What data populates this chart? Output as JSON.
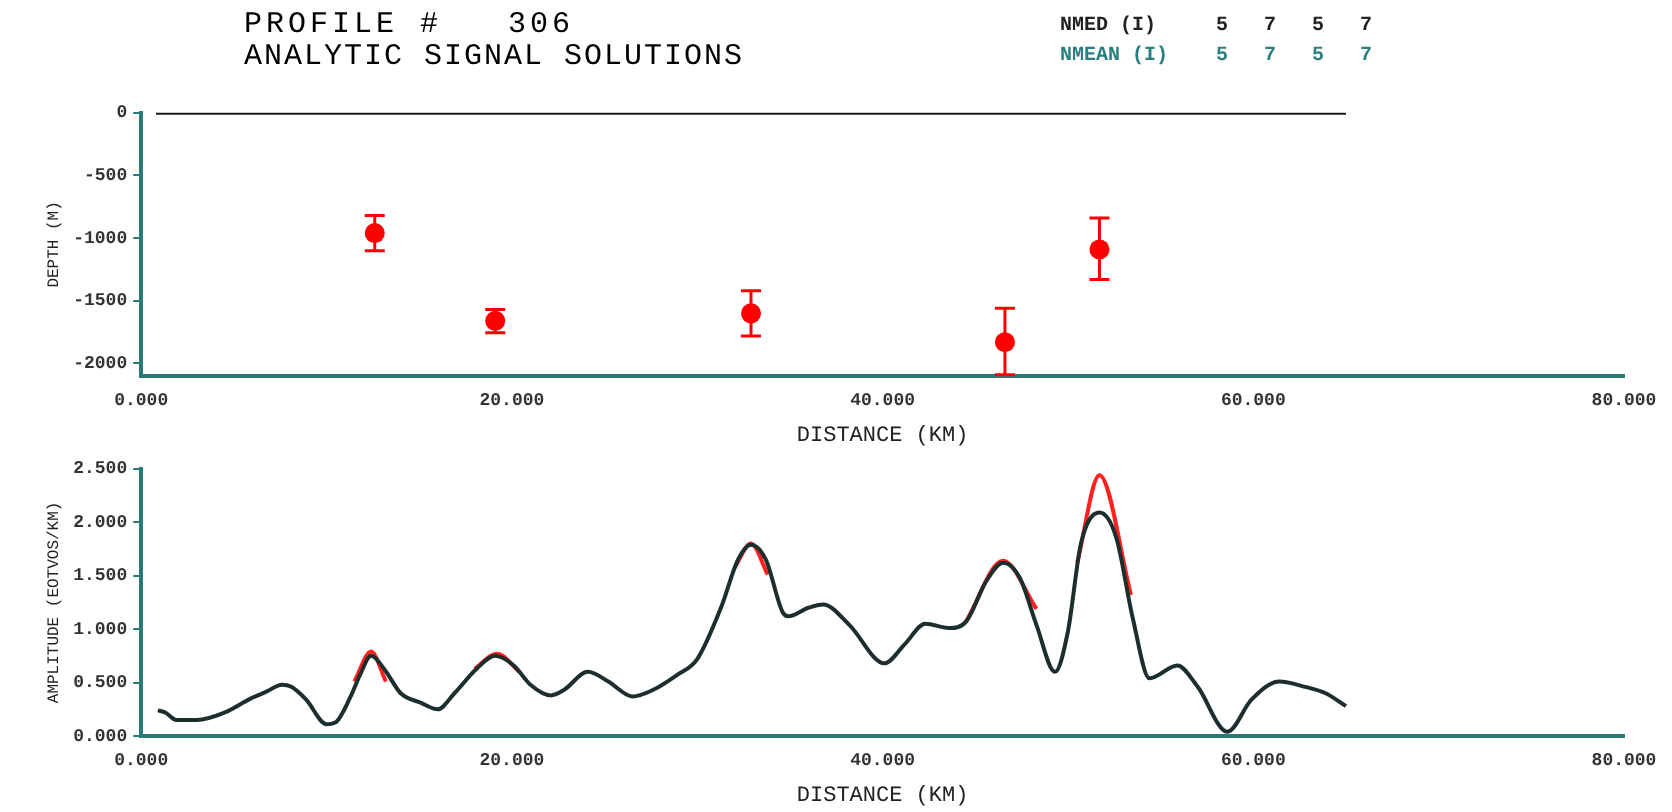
{
  "chart_data": [
    {
      "type": "scatter",
      "title": "PROFILE #   306",
      "subtitle": "ANALYTIC SIGNAL SOLUTIONS",
      "annotations": [
        "NMED (I)     5   7   5   7",
        "NMEAN (I)    5   7   5   7"
      ],
      "xlabel": "DISTANCE (KM)",
      "ylabel": "DEPTH (M)",
      "grid": false,
      "legend": false,
      "xlim": [
        0,
        80
      ],
      "xticks": [
        {
          "value": 0,
          "label": "0.000"
        },
        {
          "value": 20,
          "label": "20.000"
        },
        {
          "value": 40,
          "label": "40.000"
        },
        {
          "value": 60,
          "label": "60.000"
        },
        {
          "value": 80,
          "label": "80.000"
        }
      ],
      "ylim": [
        -2100,
        0
      ],
      "yticks": [
        0,
        -500,
        -1000,
        -1500,
        -2000
      ],
      "series": [
        {
          "marker": "circle",
          "color": "#ff0000",
          "x": [
            12.6,
            19.1,
            32.9,
            46.6,
            51.7
          ],
          "values": [
            -960,
            -1660,
            -1600,
            -1830,
            -1090
          ],
          "errors": [
            [
              -1100,
              -820
            ],
            [
              -1755,
              -1570
            ],
            [
              -1780,
              -1420
            ],
            [
              -2090,
              -1560
            ],
            [
              -1330,
              -840
            ]
          ]
        },
        {
          "type": "line",
          "color": "#1a1a1a",
          "x": [
            0.8,
            65
          ],
          "values": [
            0,
            0
          ]
        }
      ]
    },
    {
      "type": "line",
      "xlabel": "DISTANCE (KM)",
      "ylabel": "AMPLITUDE (EOTVOS/KM)",
      "marker": "none",
      "grid": false,
      "legend": false,
      "xlim": [
        0,
        80
      ],
      "xticks": [
        {
          "value": 0,
          "label": "0.000"
        },
        {
          "value": 20,
          "label": "20.000"
        },
        {
          "value": 40,
          "label": "40.000"
        },
        {
          "value": 60,
          "label": "60.000"
        },
        {
          "value": 80,
          "label": "80.000"
        }
      ],
      "ylim": [
        0,
        2.5
      ],
      "yticks": [
        {
          "value": 0,
          "label": "0.000"
        },
        {
          "value": 0.5,
          "label": "0.500"
        },
        {
          "value": 1,
          "label": "1.000"
        },
        {
          "value": 1.5,
          "label": "1.500"
        },
        {
          "value": 2,
          "label": "2.000"
        },
        {
          "value": 2.5,
          "label": "2.500"
        }
      ],
      "series": [
        {
          "color": "#1c2e2e",
          "x": [
            0.9,
            1.3,
            1.9,
            3.0,
            4.5,
            5.9,
            6.7,
            7.6,
            8.1,
            8.9,
            10.0,
            10.5,
            11.3,
            11.8,
            12.4,
            13.1,
            14.0,
            15.1,
            16.0,
            16.9,
            18.1,
            19.1,
            20.1,
            21.0,
            22.1,
            22.8,
            24.1,
            25.2,
            26.5,
            27.6,
            28.9,
            30.0,
            31.3,
            32.2,
            32.9,
            33.7,
            34.6,
            34.9,
            36.0,
            36.8,
            38.2,
            40.1,
            41.2,
            42.3,
            43.6,
            44.5,
            45.6,
            46.5,
            47.4,
            48.3,
            49.3,
            50.0,
            50.7,
            51.7,
            52.6,
            53.5,
            54.4,
            55.9,
            57.0,
            58.6,
            59.9,
            61.4,
            62.8,
            63.9,
            65.0
          ],
          "values": [
            0.24,
            0.22,
            0.15,
            0.15,
            0.22,
            0.35,
            0.41,
            0.48,
            0.46,
            0.34,
            0.11,
            0.13,
            0.37,
            0.57,
            0.75,
            0.63,
            0.4,
            0.31,
            0.25,
            0.4,
            0.63,
            0.75,
            0.66,
            0.48,
            0.38,
            0.43,
            0.6,
            0.51,
            0.37,
            0.43,
            0.57,
            0.72,
            1.21,
            1.65,
            1.79,
            1.65,
            1.16,
            1.12,
            1.2,
            1.23,
            1.04,
            0.68,
            0.86,
            1.05,
            1.01,
            1.07,
            1.45,
            1.62,
            1.48,
            1.04,
            0.6,
            0.98,
            1.8,
            2.09,
            1.86,
            1.1,
            0.54,
            0.66,
            0.46,
            0.04,
            0.34,
            0.51,
            0.46,
            0.4,
            0.28
          ]
        },
        {
          "color": "#ff2020",
          "x": [
            11.5,
            12.4,
            13.2
          ],
          "values": [
            0.51,
            0.79,
            0.51
          ]
        },
        {
          "color": "#ff2020",
          "x": [
            18.0,
            19.2,
            20.4
          ],
          "values": [
            0.63,
            0.77,
            0.6
          ]
        },
        {
          "color": "#ff2020",
          "x": [
            32.0,
            32.9,
            33.8
          ],
          "values": [
            1.57,
            1.8,
            1.51
          ]
        },
        {
          "color": "#ff2020",
          "x": [
            44.5,
            46.5,
            48.3
          ],
          "values": [
            1.07,
            1.64,
            1.19
          ]
        },
        {
          "color": "#ff2020",
          "x": [
            50.5,
            51.7,
            53.4
          ],
          "values": [
            1.62,
            2.44,
            1.32
          ]
        }
      ]
    }
  ]
}
